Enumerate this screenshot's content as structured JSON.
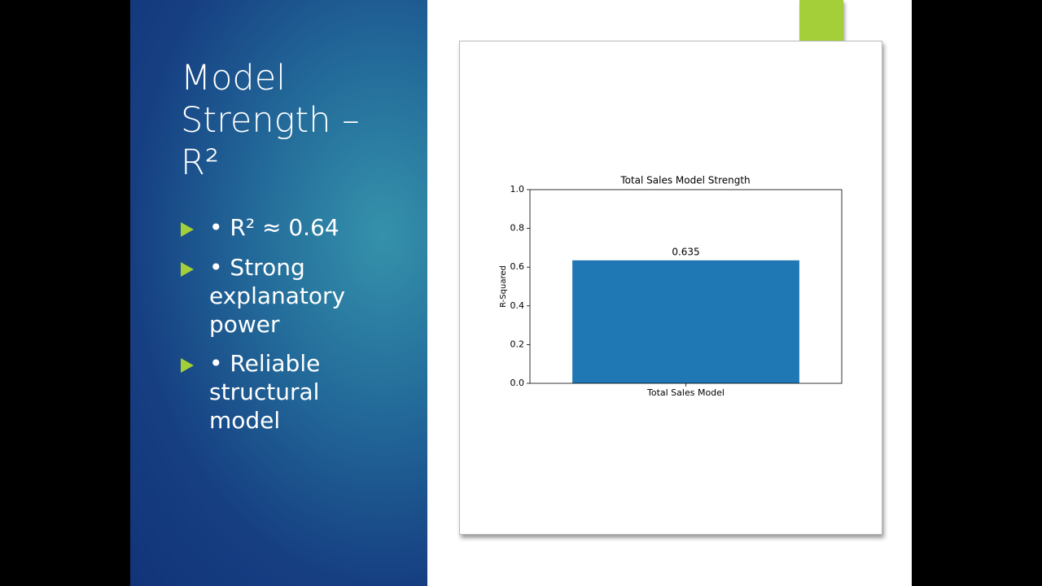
{
  "slide": {
    "title": "Model Strength – R²",
    "bullets": [
      "• R² ≈ 0.64",
      "• Strong explanatory power",
      "• Reliable structural model"
    ]
  },
  "chart_data": {
    "type": "bar",
    "title": "Total Sales Model Strength",
    "categories": [
      "Total Sales Model"
    ],
    "values": [
      0.635
    ],
    "color": "#1f77b4",
    "y_label": "R-Squared",
    "ylim": [
      0,
      1
    ],
    "yticks": [
      {
        "value": 0,
        "label": "0.0"
      },
      0.2,
      0.4,
      0.6,
      0.8,
      {
        "value": 1,
        "label": "1.0"
      }
    ],
    "grid": false
  }
}
